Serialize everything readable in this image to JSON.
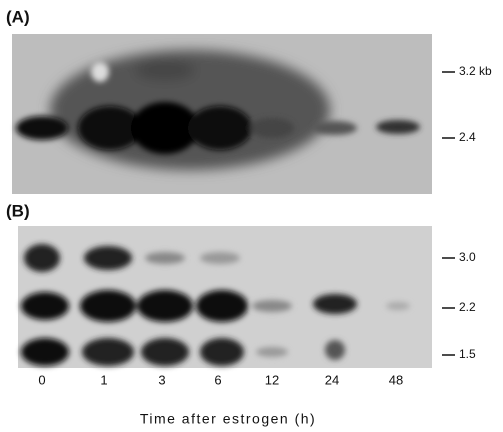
{
  "panels": [
    {
      "label": "(A)",
      "markers": [
        "3.2 kb",
        "2.4"
      ]
    },
    {
      "label": "(B)",
      "markers": [
        "3.0",
        "2.2",
        "1.5"
      ]
    }
  ],
  "lanes": [
    "0",
    "1",
    "3",
    "6",
    "12",
    "24",
    "48"
  ],
  "x_axis_title": "Time after estrogen (h)"
}
